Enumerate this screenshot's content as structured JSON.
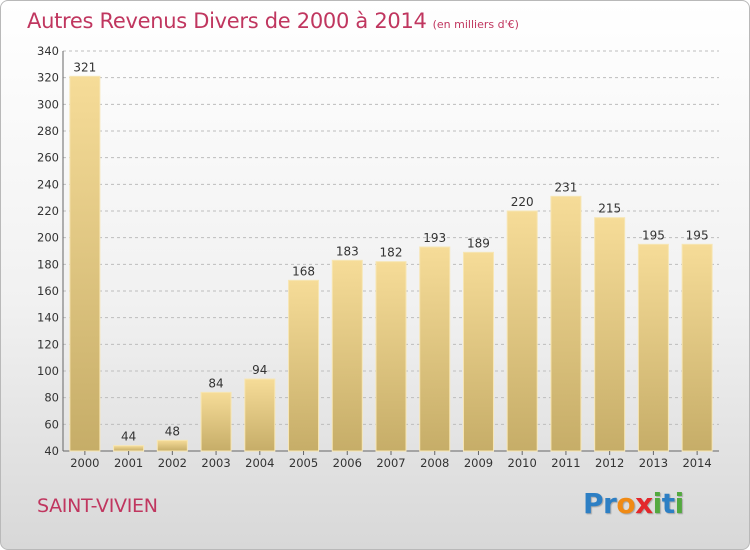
{
  "header": {
    "title": "Autres Revenus Divers de 2000 à 2014",
    "unit": "(en milliers d'€)"
  },
  "footer": {
    "city": "SAINT-VIVIEN",
    "logo_letters": [
      {
        "ch": "P",
        "color": "#2d7fc4"
      },
      {
        "ch": "r",
        "color": "#2d7fc4"
      },
      {
        "ch": "o",
        "color": "#f08a14"
      },
      {
        "ch": "x",
        "color": "#e3272b"
      },
      {
        "ch": "i",
        "color": "#53a93f"
      },
      {
        "ch": "t",
        "color": "#2d7fc4"
      },
      {
        "ch": "i",
        "color": "#53a93f"
      }
    ]
  },
  "colors": {
    "accent": "#c0365f",
    "bar_top": "#f6dc98",
    "bar_bottom": "#c6ad68",
    "grid": "#bdbdbd"
  },
  "chart_data": {
    "type": "bar",
    "title": "Autres Revenus Divers de 2000 à 2014",
    "categories": [
      "2000",
      "2001",
      "2002",
      "2003",
      "2004",
      "2005",
      "2006",
      "2007",
      "2008",
      "2009",
      "2010",
      "2011",
      "2012",
      "2013",
      "2014"
    ],
    "values": [
      321,
      44,
      48,
      84,
      94,
      168,
      183,
      182,
      193,
      189,
      220,
      231,
      215,
      195,
      195
    ],
    "ylim": [
      40,
      340
    ],
    "yticks": [
      40,
      60,
      80,
      100,
      120,
      140,
      160,
      180,
      200,
      220,
      240,
      260,
      280,
      300,
      320,
      340
    ],
    "grid": true,
    "xlabel": "",
    "ylabel": ""
  }
}
